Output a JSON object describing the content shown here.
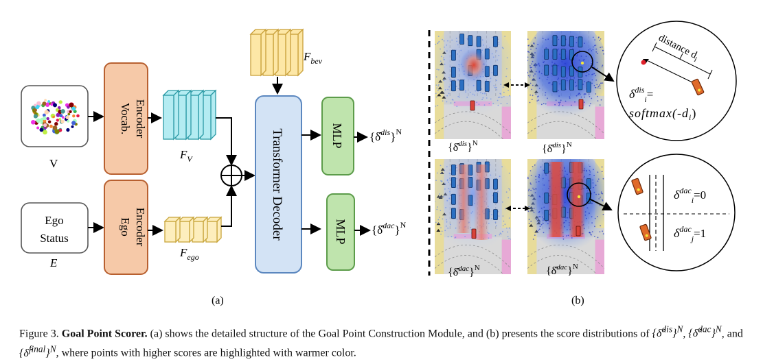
{
  "left": {
    "v_label": "V",
    "e_label": "E",
    "ego_box_line1": "Ego",
    "ego_box_line2": "Status",
    "vocab_encoder_line1": "Vocab.",
    "vocab_encoder_line2": "Encoder",
    "ego_encoder_line1": "Ego",
    "ego_encoder_line2": "Encoder",
    "fv_base": "F",
    "fv_sub": "V",
    "fego_base": "F",
    "fego_sub": "ego",
    "fbev_base": "F",
    "fbev_sub": "bev",
    "transformer_label": "Transformer Decoder",
    "mlp_top": "MLP",
    "mlp_bottom": "MLP",
    "out_top_sup": "dis",
    "out_bottom_sup": "dac",
    "out_exp": "N",
    "panel_a": "(a)"
  },
  "right": {
    "panel_b": "(b)",
    "tl_sup": "dis",
    "tr_sup": "dis",
    "bl_sup": "dac",
    "br_sup": "dac",
    "sub_exp": "N",
    "distance_label": "distance d",
    "distance_sub": "i",
    "dis_formula_lhs_sup": "dis",
    "dis_formula_rhs": "softmax(-d",
    "dis_formula_rhs_sub": "i",
    "dac0_sup": "dac",
    "dac0_val": "=0",
    "dac1_sup": "dac",
    "dac1_val": "=1"
  },
  "caption": {
    "prefix": "Figure 3. ",
    "bold": "Goal Point Scorer.",
    "text1": " (a) shows the detailed structure of the Goal Point Construction Module, and (b) presents the score distributions of ",
    "text2": ", ",
    "text3": ", and ",
    "text4": ", where points with higher scores are highlighted with warmer color.",
    "sup_dis": "dis",
    "sup_dac": "dac",
    "sup_final": "final",
    "exp": "N"
  },
  "colors": {
    "encoder_fill": "#f6c9a8",
    "encoder_stroke": "#b86030",
    "fv_fill": "#b4ecf2",
    "fv_stroke": "#2a9aa5",
    "fego_fill": "#fdeebd",
    "fego_stroke": "#c8a53a",
    "fbev_fill": "#fde7a6",
    "fbev_stroke": "#c9a03a",
    "transformer_fill": "#d3e3f5",
    "transformer_stroke": "#5b87bf",
    "mlp_fill": "#bfe4ad",
    "mlp_stroke": "#5c9c4a"
  }
}
